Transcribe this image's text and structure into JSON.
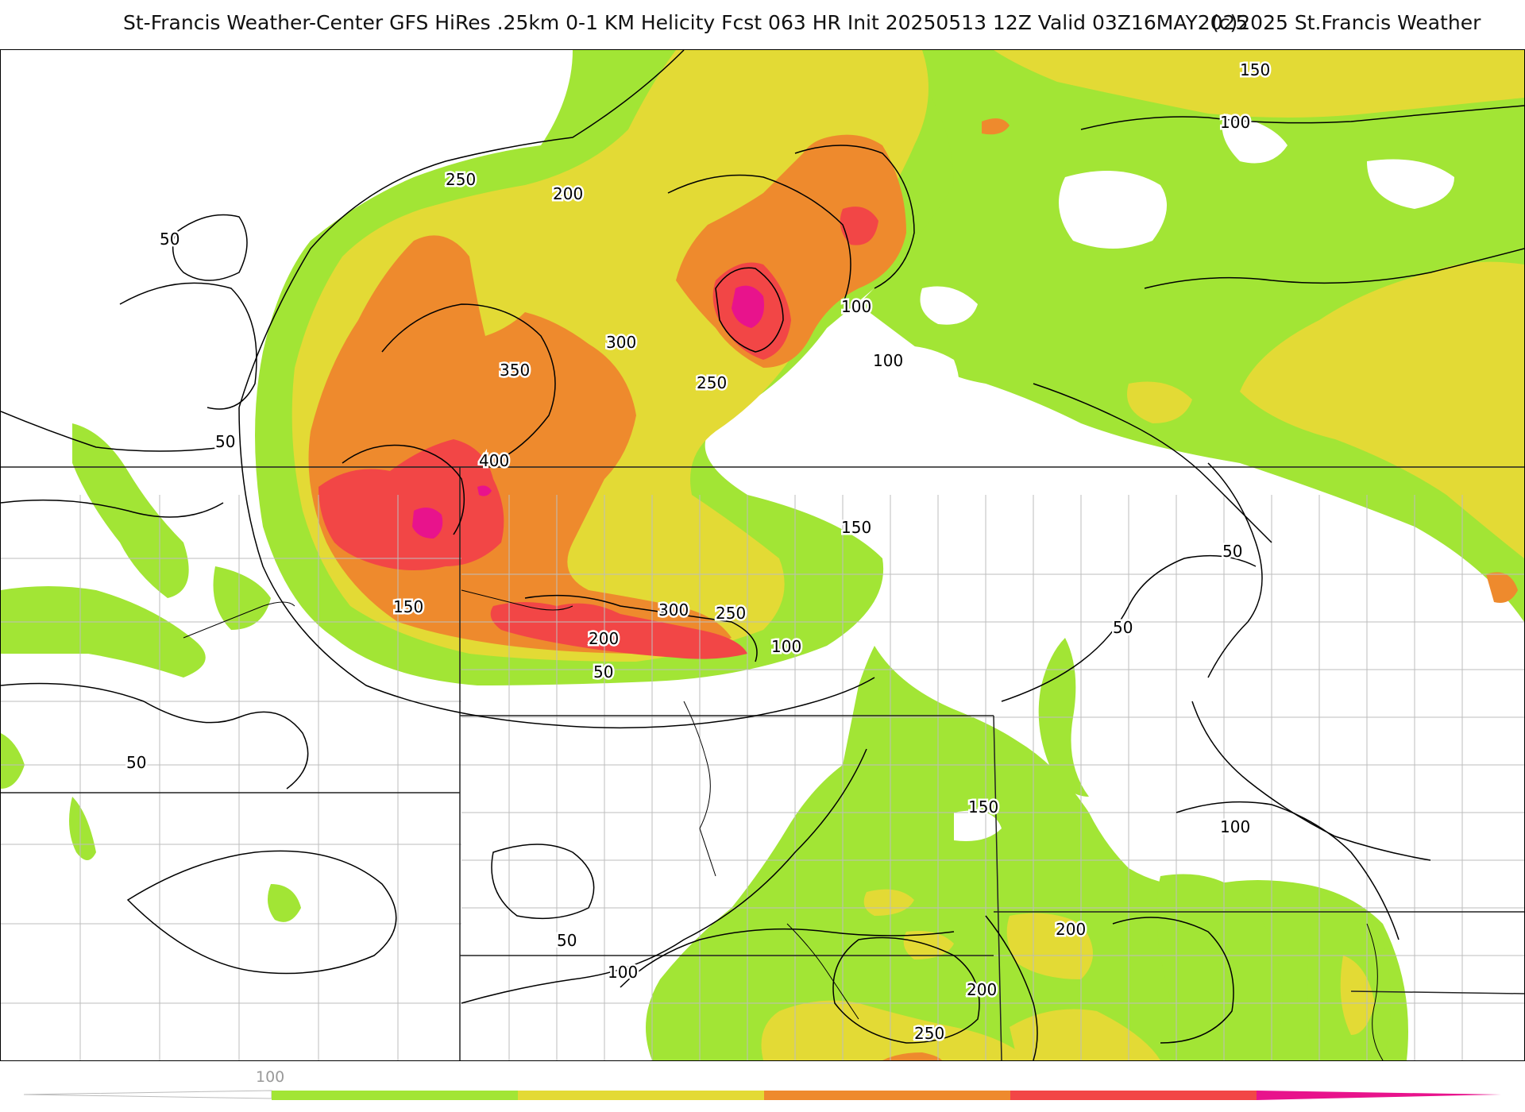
{
  "title": {
    "main": "St-Francis Weather-Center GFS HiRes .25km 0-1 KM Helicity Fcst 063 HR Init 20250513 12Z  Valid 03Z16MAY2025",
    "copyright": "(c)2025 St.Francis Weather"
  },
  "palette": {
    "level_100": "#a2e535",
    "level_200": "#e3da35",
    "level_300": "#ee8a2d",
    "level_400": "#f24646",
    "level_500": "#e8138c",
    "contour": "#000000",
    "county_lines": "#bdbdbd"
  },
  "contour_labels": [
    "50",
    "100",
    "150",
    "200",
    "250",
    "300",
    "350",
    "400"
  ],
  "legend": {
    "tick_labels": [
      "100"
    ]
  }
}
